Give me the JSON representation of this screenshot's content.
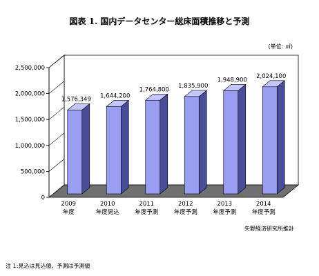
{
  "title": "図表 1.  国内データセンター総床面積推移と予測",
  "unit": "(単位: ㎡)",
  "source": "矢野経済研究所推計",
  "footnote": "注 1:見込は見込値、予測は予測値",
  "colors": {
    "bar_front": "#9a9ef2",
    "bar_side": "#4a4d9a",
    "bar_top": "#c4c6ff",
    "floor": "#707070"
  },
  "chart_data": {
    "type": "bar",
    "title": "",
    "xlabel": "",
    "ylabel": "",
    "ylim": [
      0,
      2500000
    ],
    "yticks": [
      "0",
      "500,000",
      "1,000,000",
      "1,500,000",
      "2,000,000",
      "2,500,000"
    ],
    "categories": [
      [
        "2009",
        "年度"
      ],
      [
        "2010",
        "年度見込"
      ],
      [
        "2011",
        "年度予測"
      ],
      [
        "2012",
        "年度予測"
      ],
      [
        "2013",
        "年度予測"
      ],
      [
        "2014",
        "年度予測"
      ]
    ],
    "values": [
      1576349,
      1644200,
      1764800,
      1835900,
      1948900,
      2024100
    ],
    "data_labels": [
      "1,576,349",
      "1,644,200",
      "1,764,800",
      "1,835,900",
      "1,948,900",
      "2,024,100"
    ],
    "style": "3d-bar",
    "grid": false,
    "legend": "none"
  }
}
